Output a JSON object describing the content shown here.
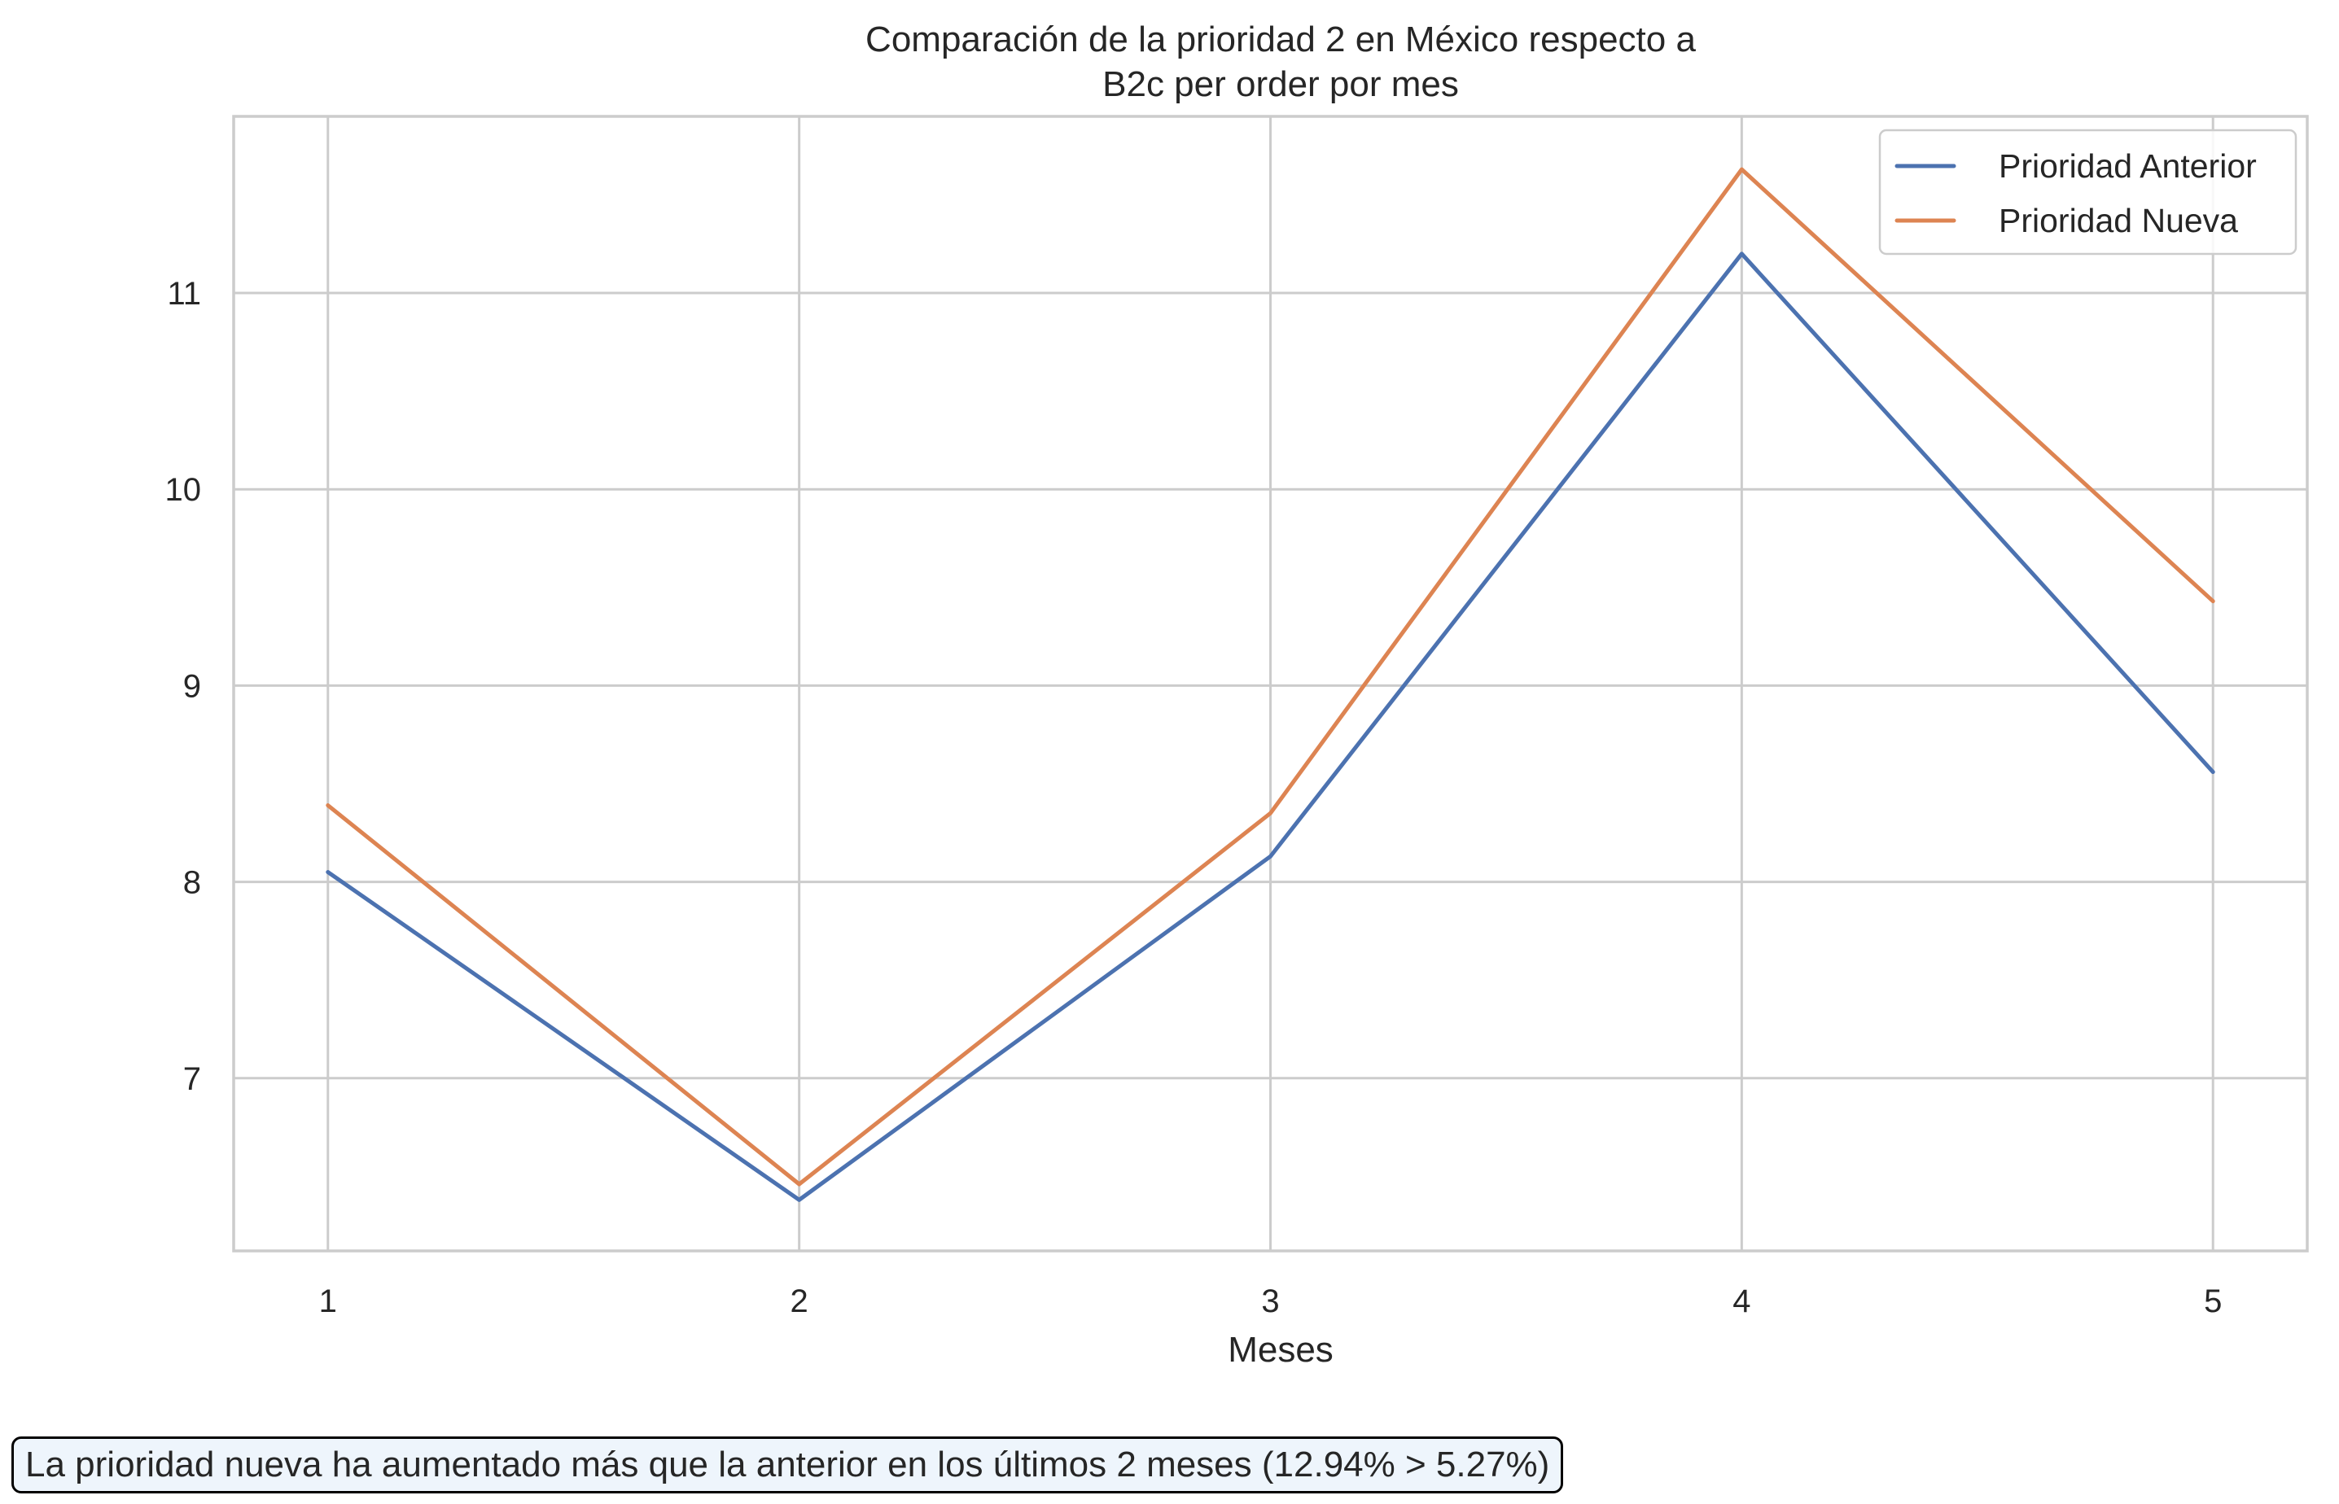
{
  "chart_data": {
    "type": "line",
    "title_lines": [
      "Comparación de la prioridad 2 en México respecto a",
      "B2c per order por mes"
    ],
    "xlabel": "Meses",
    "ylabel": "",
    "x": [
      1,
      2,
      3,
      4,
      5
    ],
    "x_ticks": [
      "1",
      "2",
      "3",
      "4",
      "5"
    ],
    "y_ticks": [
      "7",
      "8",
      "9",
      "10",
      "11"
    ],
    "y_tick_values": [
      7,
      8,
      9,
      10,
      11
    ],
    "xlim": [
      0.8,
      5.2
    ],
    "ylim": [
      6.12,
      11.9
    ],
    "grid": true,
    "legend_position": "top-right",
    "series": [
      {
        "name": "Prioridad Anterior",
        "color": "#4c72b0",
        "values": [
          8.05,
          6.38,
          8.13,
          11.2,
          8.56
        ]
      },
      {
        "name": "Prioridad Nueva",
        "color": "#dd8452",
        "values": [
          8.39,
          6.46,
          8.35,
          11.63,
          9.43
        ]
      }
    ]
  },
  "annotation": {
    "text": "La prioridad nueva ha aumentado más que la anterior en los últimos 2 meses (12.94% > 5.27%)"
  }
}
